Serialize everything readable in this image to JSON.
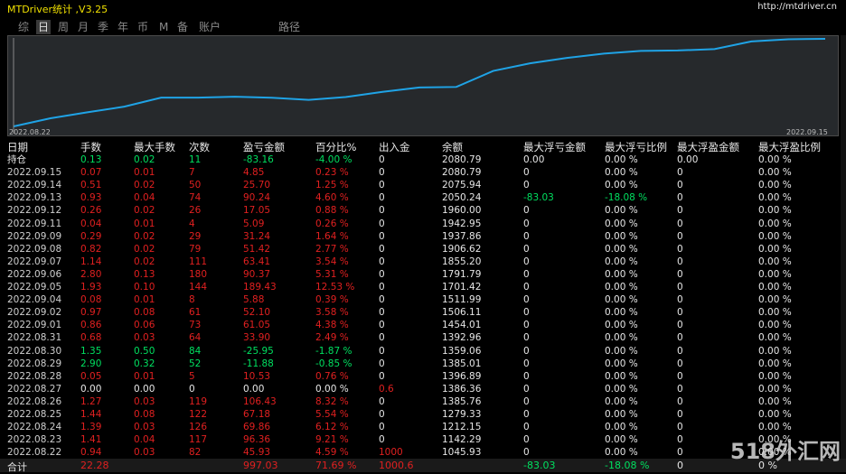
{
  "window": {
    "title": "MTDriver统计 ,V3.25",
    "url": "http://mtdriver.cn"
  },
  "tabs": [
    "综",
    "日",
    "周",
    "月",
    "季",
    "年",
    "币",
    "M",
    "备",
    "账户",
    "路径"
  ],
  "active_tab": "日",
  "chart": {
    "start_date": "2022.08.22",
    "end_date": "2022.09.15",
    "values": [
      1045.93,
      1142.29,
      1212.15,
      1279.33,
      1385.76,
      1386.36,
      1396.89,
      1385.01,
      1359.06,
      1392.96,
      1454.01,
      1506.11,
      1511.99,
      1701.42,
      1791.79,
      1855.2,
      1906.62,
      1937.86,
      1942.95,
      1960.0,
      2050.24,
      2075.94,
      2080.79
    ],
    "line_color": "#1fa3e6"
  },
  "table": {
    "headers": [
      "日期",
      "手数",
      "最大手数",
      "次数",
      "盈亏金额",
      "百分比%",
      "出入金",
      "余额",
      "最大浮亏金额",
      "最大浮亏比例",
      "最大浮盈金额",
      "最大浮盈比例"
    ],
    "rows": [
      {
        "c": "white",
        "v": [
          "持仓",
          "0.13",
          "0.02",
          "11",
          "-83.16",
          "-4.00 %",
          "0",
          "2080.79",
          "0.00",
          "0.00 %",
          "0.00",
          "0.00 %"
        ],
        "clr": [
          "w",
          "g",
          "g",
          "g",
          "g",
          "g",
          "w",
          "w",
          "w",
          "w",
          "w",
          "w"
        ]
      },
      {
        "v": [
          "2022.09.15",
          "0.07",
          "0.01",
          "7",
          "4.85",
          "0.23 %",
          "0",
          "2080.79",
          "0",
          "0.00 %",
          "0",
          "0.00 %"
        ]
      },
      {
        "v": [
          "2022.09.14",
          "0.51",
          "0.02",
          "50",
          "25.70",
          "1.25 %",
          "0",
          "2075.94",
          "0",
          "0.00 %",
          "0",
          "0.00 %"
        ]
      },
      {
        "v": [
          "2022.09.13",
          "0.93",
          "0.04",
          "74",
          "90.24",
          "4.60 %",
          "0",
          "2050.24",
          "-83.03",
          "-18.08 %",
          "0",
          "0.00 %"
        ],
        "special": "fl"
      },
      {
        "v": [
          "2022.09.12",
          "0.26",
          "0.02",
          "26",
          "17.05",
          "0.88 %",
          "0",
          "1960.00",
          "0",
          "0.00 %",
          "0",
          "0.00 %"
        ]
      },
      {
        "v": [
          "2022.09.11",
          "0.04",
          "0.01",
          "4",
          "5.09",
          "0.26 %",
          "0",
          "1942.95",
          "0",
          "0.00 %",
          "0",
          "0.00 %"
        ]
      },
      {
        "v": [
          "2022.09.09",
          "0.29",
          "0.02",
          "29",
          "31.24",
          "1.64 %",
          "0",
          "1937.86",
          "0",
          "0.00 %",
          "0",
          "0.00 %"
        ]
      },
      {
        "v": [
          "2022.09.08",
          "0.82",
          "0.02",
          "79",
          "51.42",
          "2.77 %",
          "0",
          "1906.62",
          "0",
          "0.00 %",
          "0",
          "0.00 %"
        ]
      },
      {
        "v": [
          "2022.09.07",
          "1.14",
          "0.02",
          "111",
          "63.41",
          "3.54 %",
          "0",
          "1855.20",
          "0",
          "0.00 %",
          "0",
          "0.00 %"
        ]
      },
      {
        "v": [
          "2022.09.06",
          "2.80",
          "0.13",
          "180",
          "90.37",
          "5.31 %",
          "0",
          "1791.79",
          "0",
          "0.00 %",
          "0",
          "0.00 %"
        ]
      },
      {
        "v": [
          "2022.09.05",
          "1.93",
          "0.10",
          "144",
          "189.43",
          "12.53 %",
          "0",
          "1701.42",
          "0",
          "0.00 %",
          "0",
          "0.00 %"
        ]
      },
      {
        "v": [
          "2022.09.04",
          "0.08",
          "0.01",
          "8",
          "5.88",
          "0.39 %",
          "0",
          "1511.99",
          "0",
          "0.00 %",
          "0",
          "0.00 %"
        ]
      },
      {
        "v": [
          "2022.09.02",
          "0.97",
          "0.08",
          "61",
          "52.10",
          "3.58 %",
          "0",
          "1506.11",
          "0",
          "0.00 %",
          "0",
          "0.00 %"
        ]
      },
      {
        "v": [
          "2022.09.01",
          "0.86",
          "0.06",
          "73",
          "61.05",
          "4.38 %",
          "0",
          "1454.01",
          "0",
          "0.00 %",
          "0",
          "0.00 %"
        ]
      },
      {
        "v": [
          "2022.08.31",
          "0.68",
          "0.03",
          "64",
          "33.90",
          "2.49 %",
          "0",
          "1392.96",
          "0",
          "0.00 %",
          "0",
          "0.00 %"
        ]
      },
      {
        "v": [
          "2022.08.30",
          "1.35",
          "0.50",
          "84",
          "-25.95",
          "-1.87 %",
          "0",
          "1359.06",
          "0",
          "0.00 %",
          "0",
          "0.00 %"
        ],
        "clr": [
          "d",
          "g",
          "g",
          "g",
          "g",
          "g",
          "w",
          "w",
          "w",
          "w",
          "w",
          "w"
        ]
      },
      {
        "v": [
          "2022.08.29",
          "2.90",
          "0.32",
          "52",
          "-11.88",
          "-0.85 %",
          "0",
          "1385.01",
          "0",
          "0.00 %",
          "0",
          "0.00 %"
        ],
        "clr": [
          "d",
          "g",
          "g",
          "g",
          "g",
          "g",
          "w",
          "w",
          "w",
          "w",
          "w",
          "w"
        ]
      },
      {
        "v": [
          "2022.08.28",
          "0.05",
          "0.01",
          "5",
          "10.53",
          "0.76 %",
          "0",
          "1396.89",
          "0",
          "0.00 %",
          "0",
          "0.00 %"
        ]
      },
      {
        "v": [
          "2022.08.27",
          "0.00",
          "0.00",
          "0",
          "0.00",
          "0.00 %",
          "0.6",
          "1386.36",
          "0",
          "0.00 %",
          "0",
          "0.00 %"
        ],
        "clr": [
          "d",
          "w",
          "w",
          "w",
          "w",
          "w",
          "r",
          "w",
          "w",
          "w",
          "w",
          "w"
        ]
      },
      {
        "v": [
          "2022.08.26",
          "1.27",
          "0.03",
          "119",
          "106.43",
          "8.32 %",
          "0",
          "1385.76",
          "0",
          "0.00 %",
          "0",
          "0.00 %"
        ]
      },
      {
        "v": [
          "2022.08.25",
          "1.44",
          "0.08",
          "122",
          "67.18",
          "5.54 %",
          "0",
          "1279.33",
          "0",
          "0.00 %",
          "0",
          "0.00 %"
        ]
      },
      {
        "v": [
          "2022.08.24",
          "1.39",
          "0.03",
          "126",
          "69.86",
          "6.12 %",
          "0",
          "1212.15",
          "0",
          "0.00 %",
          "0",
          "0.00 %"
        ]
      },
      {
        "v": [
          "2022.08.23",
          "1.41",
          "0.04",
          "117",
          "96.36",
          "9.21 %",
          "0",
          "1142.29",
          "0",
          "0.00 %",
          "0",
          "0.00 %"
        ]
      },
      {
        "v": [
          "2022.08.22",
          "0.94",
          "0.03",
          "82",
          "45.93",
          "4.59 %",
          "1000",
          "1045.93",
          "0",
          "0.00 %",
          "0",
          "0.00 %"
        ],
        "clr": [
          "d",
          "r",
          "r",
          "r",
          "r",
          "r",
          "r",
          "w",
          "w",
          "w",
          "w",
          "w"
        ]
      }
    ],
    "total": [
      "合计",
      "22.28",
      "",
      "",
      "997.03",
      "71.69 %",
      "1000.6",
      "",
      "-83.03",
      "-18.08 %",
      "0",
      "0 %"
    ]
  },
  "watermark": "518外汇网"
}
